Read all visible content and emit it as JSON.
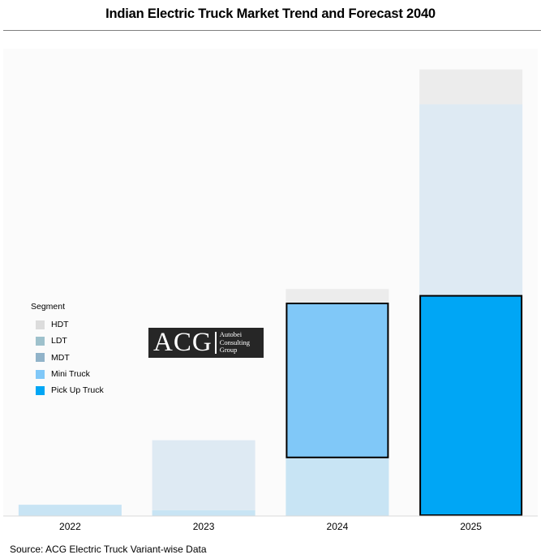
{
  "chart_data": {
    "type": "bar",
    "stacked": true,
    "title": "Indian Electric Truck Market Trend and Forecast 2040",
    "categories": [
      "2022",
      "2023",
      "2024",
      "2025"
    ],
    "legend_title": "Segment",
    "legend_position": "left",
    "grid": false,
    "ylim": [
      0,
      100
    ],
    "series": [
      {
        "name": "Pick Up Truck",
        "color": "#00A6F5",
        "values": [
          2.5,
          1.3,
          12.8,
          49.0
        ]
      },
      {
        "name": "Mini Truck",
        "color": "#80C8F8",
        "values": [
          0.0,
          0.0,
          34.5,
          0.0
        ]
      },
      {
        "name": "MDT",
        "color": "#91B3C9",
        "values": [
          0.0,
          0.0,
          0.0,
          0.0
        ]
      },
      {
        "name": "LDT",
        "color": "#9EC1CC",
        "values": [
          0.0,
          15.5,
          0.0,
          42.3
        ]
      },
      {
        "name": "HDT",
        "color": "#DCDCDC",
        "values": [
          0.0,
          0.0,
          3.0,
          7.7
        ]
      }
    ],
    "highlighted": [
      {
        "category": "2024",
        "series": "Mini Truck"
      },
      {
        "category": "2025",
        "series": "Pick Up Truck"
      }
    ],
    "source": "Source: ACG Electric Truck Variant-wise Data"
  },
  "logo": {
    "main": "ACG",
    "line1": "Autobei",
    "line2": "Consulting",
    "line3": "Group"
  }
}
